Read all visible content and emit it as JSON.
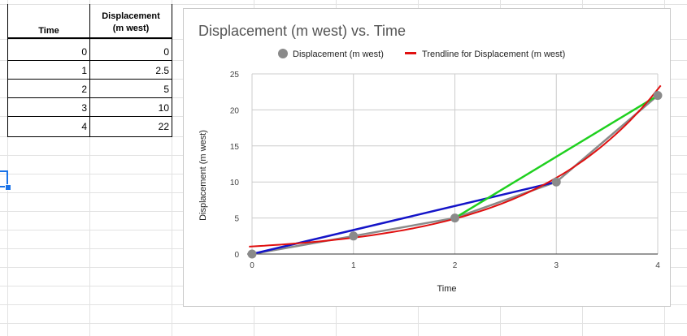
{
  "table": {
    "header_time": "Time",
    "header_disp_line1": "Displacement",
    "header_disp_line2": "(m west)",
    "rows": [
      {
        "time": "0",
        "disp": "0"
      },
      {
        "time": "1",
        "disp": "2.5"
      },
      {
        "time": "2",
        "disp": "5"
      },
      {
        "time": "3",
        "disp": "10"
      },
      {
        "time": "4",
        "disp": "22"
      }
    ]
  },
  "colors": {
    "series": "#8a8a8a",
    "trendline": "#e01010",
    "blue_line": "#1414c8",
    "green_line": "#1fd01f",
    "selection": "#1a73e8"
  },
  "chart_data": {
    "type": "scatter",
    "title": "Displacement (m west) vs. Time",
    "xlabel": "Time",
    "ylabel": "Displacement (m west)",
    "xlim": [
      0,
      4
    ],
    "ylim": [
      0,
      25
    ],
    "x_ticks": [
      "0",
      "1",
      "2",
      "3",
      "4"
    ],
    "y_ticks": [
      "0",
      "5",
      "10",
      "15",
      "20",
      "25"
    ],
    "grid": true,
    "legend_position": "top",
    "series": [
      {
        "name": "Displacement (m west)",
        "x": [
          0,
          1,
          2,
          3,
          4
        ],
        "y": [
          0,
          2.5,
          5,
          10,
          22
        ],
        "marker": "circle",
        "connected": true
      }
    ],
    "trendline": {
      "name": "Trendline for Displacement (m west)",
      "type": "exponential",
      "a": 1.05,
      "b": 0.77
    },
    "annotation_lines": [
      {
        "x": [
          0,
          3
        ],
        "y": [
          0,
          10
        ],
        "color": "blue"
      },
      {
        "x": [
          2,
          4
        ],
        "y": [
          5,
          22
        ],
        "color": "green"
      }
    ]
  }
}
